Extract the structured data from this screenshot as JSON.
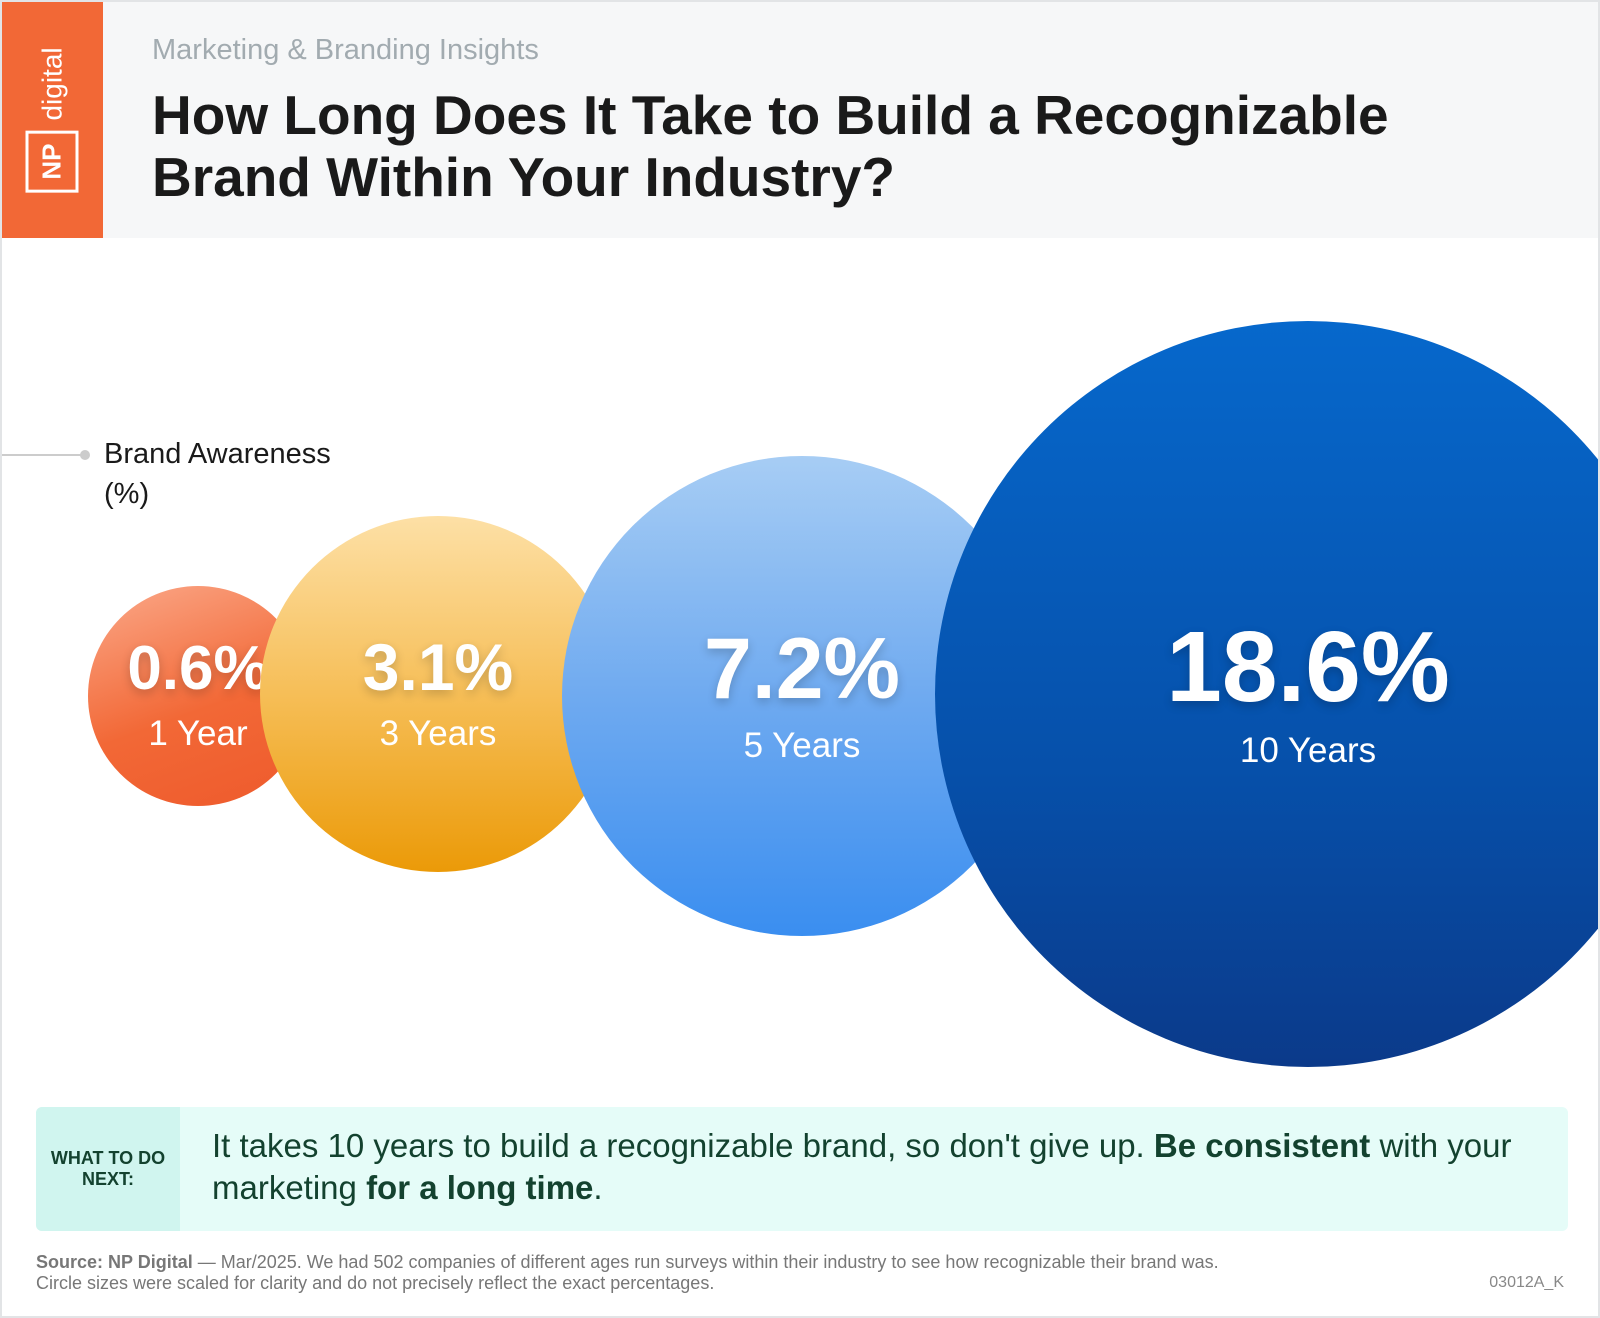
{
  "logo": {
    "np": "NP",
    "digital": "digital"
  },
  "header": {
    "subtitle": "Marketing & Branding Insights",
    "title": "How Long Does It Take to Build a Recognizable Brand Within Your Industry?"
  },
  "chart_data": {
    "type": "bubble",
    "legend_label": "Brand Awareness (%)",
    "categories": [
      "1 Year",
      "3 Years",
      "5 Years",
      "10 Years"
    ],
    "values": [
      0.6,
      3.1,
      7.2,
      18.6
    ],
    "value_labels": [
      "0.6%",
      "3.1%",
      "7.2%",
      "18.6%"
    ],
    "colors": [
      "#f26836",
      "#f0a21a",
      "#4a9cf0",
      "#0b4aa0"
    ]
  },
  "callout": {
    "label": "WHAT TO DO NEXT:",
    "text_1": "It takes 10 years to build a recognizable brand, so don't give up. ",
    "bold_1": "Be consistent",
    "text_2": " with your marketing ",
    "bold_2": "for a long time",
    "text_3": "."
  },
  "footer": {
    "source_label": "Source: NP Digital",
    "source_text": " — Mar/2025. We had 502 companies of different ages run surveys within their industry to see how recognizable their brand was.",
    "note": "Circle sizes were scaled for clarity and do not precisely reflect the exact percentages.",
    "code": "03012A_K"
  }
}
